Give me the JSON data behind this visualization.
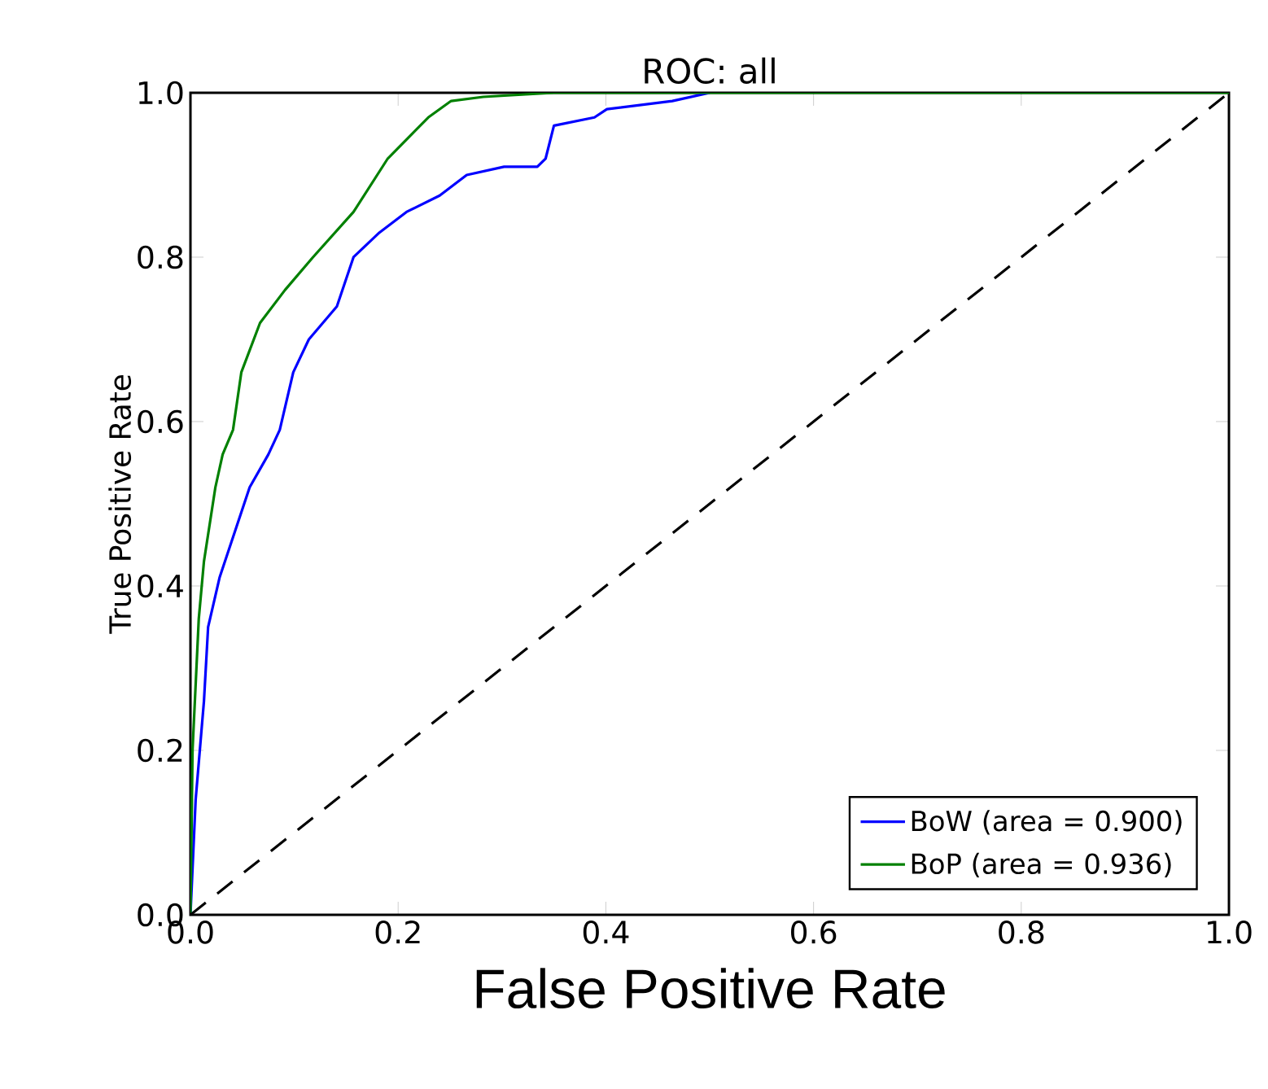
{
  "chart_data": {
    "type": "line",
    "title": "ROC: all",
    "xlabel": "False Positive Rate",
    "ylabel": "True Positive Rate",
    "xlim": [
      0,
      1
    ],
    "ylim": [
      0,
      1
    ],
    "xticks": [
      {
        "value": 0,
        "label": "0.0"
      },
      {
        "value": 0.2,
        "label": "0.2"
      },
      {
        "value": 0.4,
        "label": "0.4"
      },
      {
        "value": 0.6,
        "label": "0.6"
      },
      {
        "value": 0.8,
        "label": "0.8"
      },
      {
        "value": 1,
        "label": "1.0"
      }
    ],
    "yticks": [
      {
        "value": 0,
        "label": "0.0"
      },
      {
        "value": 0.2,
        "label": "0.2"
      },
      {
        "value": 0.4,
        "label": "0.4"
      },
      {
        "value": 0.6,
        "label": "0.6"
      },
      {
        "value": 0.8,
        "label": "0.8"
      },
      {
        "value": 1,
        "label": "1.0"
      }
    ],
    "grid": false,
    "legend": "bottom right",
    "series": [
      {
        "name": "BoW (area = 0.900)",
        "color": "#0000ff",
        "line_style": "solid",
        "x": [
          0,
          0.005,
          0.013,
          0.017,
          0.028,
          0.057,
          0.075,
          0.086,
          0.099,
          0.114,
          0.141,
          0.157,
          0.182,
          0.208,
          0.24,
          0.266,
          0.302,
          0.334,
          0.342,
          0.35,
          0.389,
          0.401,
          0.464,
          0.5
        ],
        "values": [
          0,
          0.14,
          0.26,
          0.35,
          0.41,
          0.52,
          0.56,
          0.59,
          0.66,
          0.7,
          0.74,
          0.8,
          0.83,
          0.855,
          0.875,
          0.9,
          0.91,
          0.91,
          0.92,
          0.96,
          0.97,
          0.98,
          0.99,
          1
        ]
      },
      {
        "name": "BoP (area = 0.936)",
        "color": "#008000",
        "line_style": "solid",
        "x": [
          0,
          0.002,
          0.008,
          0.013,
          0.024,
          0.031,
          0.041,
          0.049,
          0.067,
          0.091,
          0.118,
          0.157,
          0.19,
          0.229,
          0.251,
          0.282,
          0.35,
          1
        ],
        "values": [
          0,
          0.2,
          0.36,
          0.43,
          0.52,
          0.56,
          0.59,
          0.66,
          0.72,
          0.76,
          0.8,
          0.855,
          0.92,
          0.97,
          0.99,
          0.995,
          1,
          1
        ]
      },
      {
        "color": "#000000",
        "line_style": "dashed",
        "x": [
          0,
          1
        ],
        "values": [
          0,
          1
        ]
      }
    ]
  }
}
